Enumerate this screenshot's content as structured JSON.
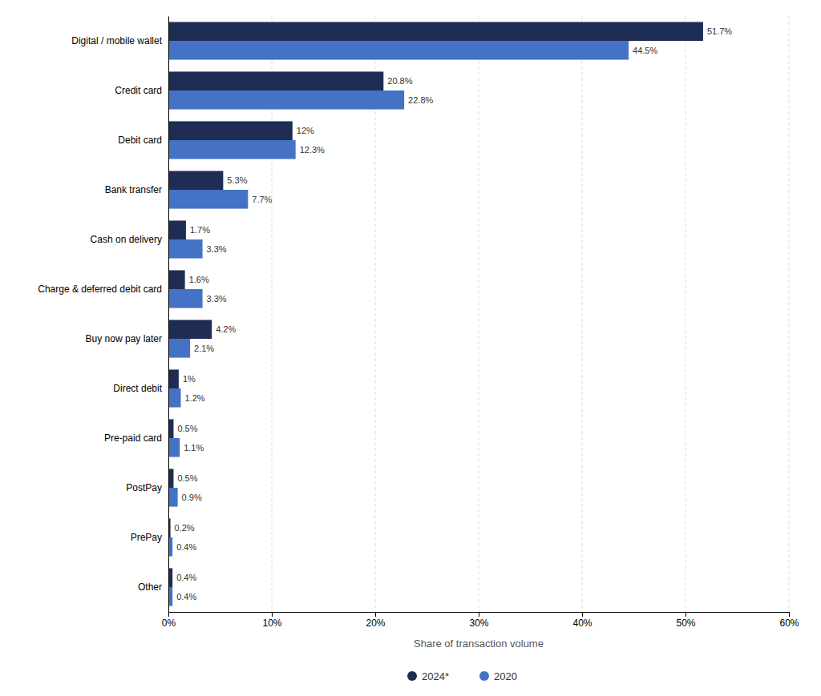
{
  "chart_data": {
    "type": "bar",
    "orientation": "horizontal",
    "categories": [
      "Digital / mobile wallet",
      "Credit card",
      "Debit card",
      "Bank transfer",
      "Cash on delivery",
      "Charge & deferred debit card",
      "Buy now pay later",
      "Direct debit",
      "Pre-paid card",
      "PostPay",
      "PrePay",
      "Other"
    ],
    "series": [
      {
        "name": "2024*",
        "color": "#1F2D54",
        "values": [
          51.7,
          20.8,
          12.0,
          5.3,
          1.7,
          1.6,
          4.2,
          1.0,
          0.5,
          0.5,
          0.2,
          0.4
        ],
        "value_labels": [
          "51.7%",
          "20.8%",
          "12%",
          "5.3%",
          "1.7%",
          "1.6%",
          "4.2%",
          "1%",
          "0.5%",
          "0.5%",
          "0.2%",
          "0.4%"
        ]
      },
      {
        "name": "2020",
        "color": "#4472C4",
        "values": [
          44.5,
          22.8,
          12.3,
          7.7,
          3.3,
          3.3,
          2.1,
          1.2,
          1.1,
          0.9,
          0.4,
          0.4
        ],
        "value_labels": [
          "44.5%",
          "22.8%",
          "12.3%",
          "7.7%",
          "3.3%",
          "3.3%",
          "2.1%",
          "1.2%",
          "1.1%",
          "0.9%",
          "0.4%",
          "0.4%"
        ]
      }
    ],
    "xlabel": "Share of transaction volume",
    "xlim": [
      0,
      60
    ],
    "xticks": [
      {
        "value": 0,
        "label": "0%"
      },
      {
        "value": 10,
        "label": "10%"
      },
      {
        "value": 20,
        "label": "20%"
      },
      {
        "value": 30,
        "label": "30%"
      },
      {
        "value": 40,
        "label": "40%"
      },
      {
        "value": 50,
        "label": "50%"
      },
      {
        "value": 60,
        "label": "60%"
      }
    ],
    "grid": true,
    "legend": "bottom",
    "data_labels": true
  }
}
